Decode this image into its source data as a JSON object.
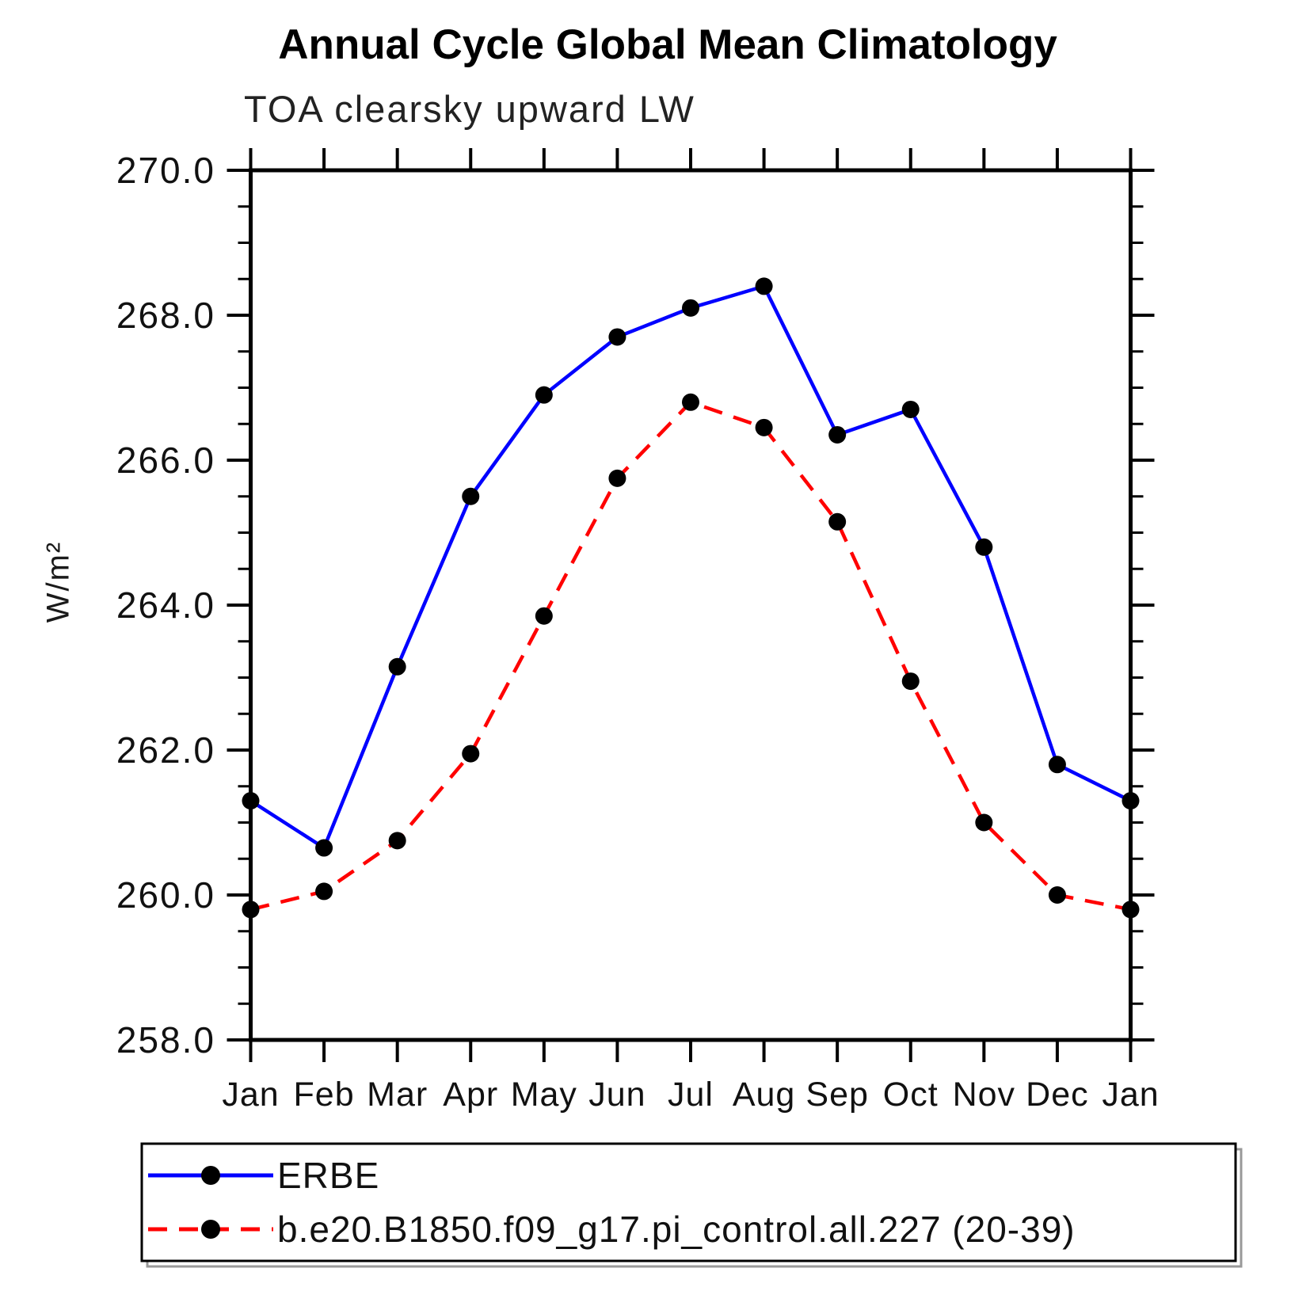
{
  "chart_data": {
    "type": "line",
    "title": "Annual Cycle Global Mean Climatology",
    "subtitle": "TOA clearsky upward LW",
    "xlabel": "",
    "ylabel": "W/m²",
    "categories": [
      "Jan",
      "Feb",
      "Mar",
      "Apr",
      "May",
      "Jun",
      "Jul",
      "Aug",
      "Sep",
      "Oct",
      "Nov",
      "Dec",
      "Jan"
    ],
    "series": [
      {
        "name": "ERBE",
        "color": "#0000ff",
        "line_style": "solid",
        "marker": "filled-circle",
        "marker_color": "#000000",
        "values": [
          261.3,
          260.65,
          263.15,
          265.5,
          266.9,
          267.7,
          268.1,
          268.4,
          266.35,
          266.7,
          264.8,
          261.8,
          261.3
        ]
      },
      {
        "name": "b.e20.B1850.f09_g17.pi_control.all.227 (20-39)",
        "color": "#ff0000",
        "line_style": "dashed",
        "marker": "filled-circle",
        "marker_color": "#000000",
        "values": [
          259.8,
          260.05,
          260.75,
          261.95,
          263.85,
          265.75,
          266.8,
          266.45,
          265.15,
          262.95,
          261.0,
          260.0,
          259.8
        ]
      }
    ],
    "ylim": [
      258.0,
      270.0
    ],
    "y_major_ticks": [
      258.0,
      260.0,
      262.0,
      264.0,
      266.0,
      268.0,
      270.0
    ],
    "y_major_tick_labels": [
      "258.0",
      "260.0",
      "262.0",
      "264.0",
      "266.0",
      "268.0",
      "270.0"
    ],
    "y_minor_tick_step": 0.5,
    "grid": false,
    "legend_position": "bottom-left-box",
    "axis_color": "#000000"
  }
}
